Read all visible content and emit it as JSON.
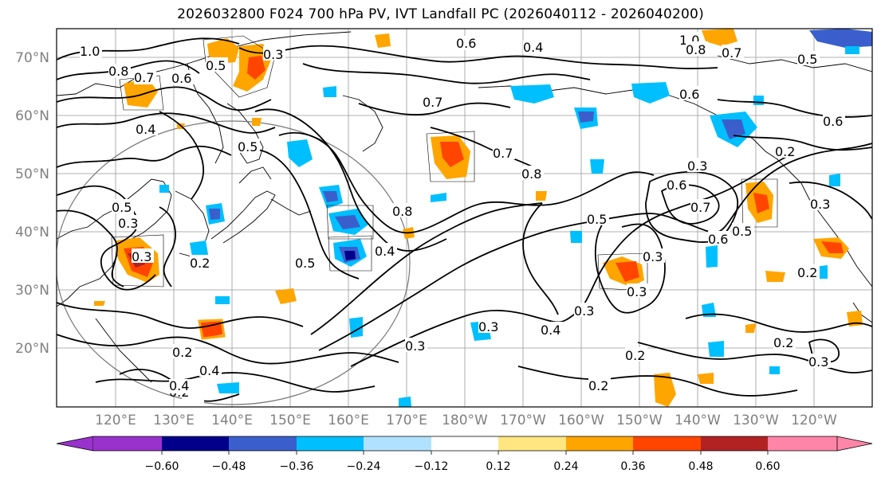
{
  "title": "2026032800 F024 700 hPa PV, IVT Landfall PC (2026040112 - 2026040200)",
  "map": {
    "lat_labels": [
      "70°N",
      "60°N",
      "50°N",
      "40°N",
      "30°N",
      "20°N"
    ],
    "lon_labels": [
      "120°E",
      "130°E",
      "140°E",
      "150°E",
      "160°E",
      "170°E",
      "180°W",
      "170°W",
      "160°W",
      "150°W",
      "140°W",
      "130°W",
      "120°W"
    ],
    "contour_labels": [
      "1.0",
      "0.8",
      "0.7",
      "0.5",
      "0.6",
      "0.3",
      "0.4",
      "0.6",
      "0.4",
      "1.0",
      "0.8",
      "0.7",
      "0.5",
      "0.6",
      "0.5",
      "0.7",
      "0.8",
      "0.7",
      "0.3",
      "0.2",
      "0.6",
      "0.5",
      "0.5",
      "0.3",
      "0.3",
      "0.8",
      "0.6",
      "0.7",
      "0.5",
      "0.4",
      "0.3",
      "0.3",
      "0.4",
      "0.6",
      "0.5",
      "0.3",
      "0.2",
      "0.3",
      "0.2",
      "0.4",
      "0.3",
      "0.2",
      "0.2",
      "0.3",
      "0.2",
      "0.3",
      "0.2",
      "0.4",
      "0.2"
    ]
  },
  "colorbar": {
    "ticks": [
      "−0.60",
      "−0.48",
      "−0.36",
      "−0.24",
      "−0.12",
      "0.12",
      "0.24",
      "0.36",
      "0.48",
      "0.60"
    ],
    "colors": [
      "#9932cc",
      "#00008b",
      "#3a5fcd",
      "#00bfff",
      "#b0e2ff",
      "#ffffff",
      "#ffe680",
      "#ffa500",
      "#ff4500",
      "#b22222",
      "#ff85a8"
    ]
  },
  "colors": {
    "blue_light": "#b0e2ff",
    "blue": "#00bfff",
    "blue_mid": "#3a5fcd",
    "blue_dark": "#00008b",
    "yellow": "#ffe680",
    "orange": "#ffa500",
    "red_orange": "#ff4500",
    "red": "#b22222"
  }
}
